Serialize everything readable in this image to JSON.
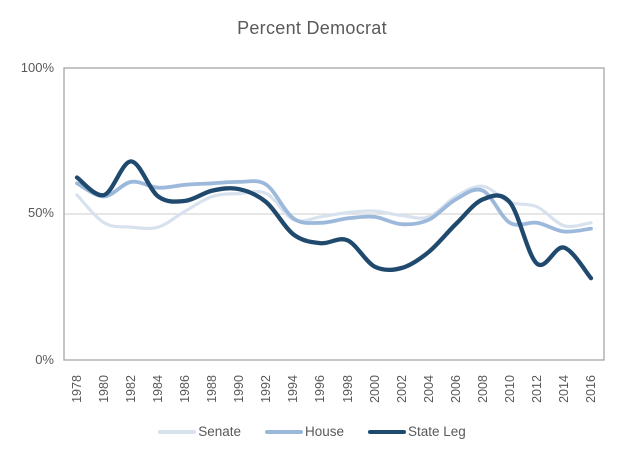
{
  "title": "Percent Democrat",
  "colors": {
    "text": "#595959",
    "plot_border": "#a6a6a6",
    "gridline": "#d6d6d6",
    "background": "#ffffff",
    "senate": "#d8e2ef",
    "house": "#9cb9dc",
    "state_leg": "#1f4a6e"
  },
  "axes": {
    "y": {
      "ticks": [
        "100%",
        "50%",
        "0%"
      ]
    }
  },
  "legend": {
    "items": [
      {
        "label": "Senate"
      },
      {
        "label": "House"
      },
      {
        "label": "State Leg"
      }
    ]
  },
  "chart_data": {
    "type": "line",
    "title": "Percent Democrat",
    "categories": [
      "1978",
      "1980",
      "1982",
      "1984",
      "1986",
      "1988",
      "1990",
      "1992",
      "1994",
      "1996",
      "1998",
      "2000",
      "2002",
      "2004",
      "2006",
      "2008",
      "2010",
      "2012",
      "2014",
      "2016"
    ],
    "series": [
      {
        "name": "Senate",
        "color": "#d8e2ef",
        "width": 3.2,
        "values": [
          56.5,
          47,
          45.5,
          45.5,
          51,
          56,
          57,
          57,
          48,
          49,
          50.5,
          51,
          49.5,
          49,
          56,
          59.5,
          54,
          52.5,
          46,
          47
        ]
      },
      {
        "name": "House",
        "color": "#9cb9dc",
        "width": 3.8,
        "values": [
          60.5,
          56,
          61,
          59,
          60,
          60.5,
          61,
          60,
          48.5,
          47,
          48.5,
          49,
          46.5,
          48,
          55,
          58,
          47,
          47,
          44,
          45
        ]
      },
      {
        "name": "State Leg",
        "color": "#1f4a6e",
        "width": 4.3,
        "values": [
          62.5,
          56.5,
          68,
          56,
          54.5,
          58,
          58.5,
          54,
          43,
          40,
          41,
          32,
          31.5,
          37,
          46.5,
          55,
          54,
          33,
          38.5,
          28
        ]
      }
    ],
    "xlabel": "",
    "ylabel": "",
    "ylim": [
      0,
      100
    ],
    "y_tick_labels": [
      "0%",
      "50%",
      "100%"
    ],
    "grid": "horizontal line at 50% only, plot area fully boxed",
    "legend_position": "bottom",
    "line_style": "smoothed"
  }
}
